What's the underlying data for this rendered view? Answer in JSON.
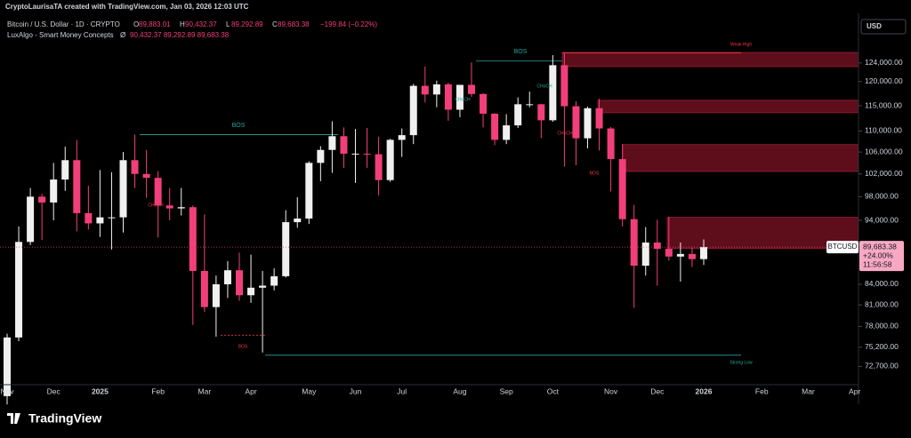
{
  "header": {
    "attribution": "CryptoLaurisaTA created with TradingView.com, Jan 03, 2026 12:03 UTC"
  },
  "chart_data": {
    "type": "candlestick",
    "title": "Bitcoin / U.S. Dollar · 1D · CRYPTO",
    "ohlc_legend": [
      {
        "key": "O",
        "label": "89,883.01"
      },
      {
        "key": "H",
        "label": "90,432.37"
      },
      {
        "key": "L",
        "label": "89,292.89"
      },
      {
        "key": "C",
        "label": "89,683.38"
      }
    ],
    "change_label": "−199.84 (−0.22%)",
    "indicator": {
      "name": "LuxAlgo - Smart Money Concepts",
      "symbol": "Ø",
      "values_label": "90,432.37  89,292.89  89,683.38"
    },
    "currency": "USD",
    "categories": [
      "Nov",
      null,
      null,
      null,
      "Dec",
      null,
      null,
      null,
      "2025",
      null,
      null,
      null,
      null,
      "Feb",
      null,
      null,
      null,
      "Mar",
      null,
      null,
      null,
      "Apr",
      null,
      null,
      null,
      null,
      "May",
      null,
      null,
      null,
      "Jun",
      null,
      null,
      null,
      "Jul",
      null,
      null,
      null,
      null,
      "Aug",
      null,
      null,
      null,
      "Sep",
      null,
      null,
      null,
      "Oct",
      null,
      null,
      null,
      null,
      "Nov",
      null,
      null,
      null,
      "Dec",
      null,
      null,
      null,
      "2026",
      null,
      null,
      null,
      null,
      "Feb",
      null,
      null,
      null,
      "Mar",
      null,
      null,
      null,
      "Apr"
    ],
    "open": [
      69000,
      76500,
      90500,
      98000,
      97000,
      101000,
      104500,
      95200,
      93500,
      94500,
      94500,
      104500,
      102000,
      101300,
      96500,
      96000,
      96200,
      86000,
      80700,
      84000,
      86100,
      82400,
      83500,
      83800,
      85200,
      93700,
      94300,
      104000,
      106400,
      109000,
      105700,
      105700,
      105600,
      100900,
      108300,
      109200,
      119100,
      117300,
      119400,
      114200,
      119300,
      117400,
      113400,
      108300,
      111100,
      115300,
      115300,
      112100,
      123500,
      114900,
      108600,
      114500,
      110500,
      104700,
      94200,
      86800,
      90400,
      89400,
      88200,
      88600,
      87800,
      null,
      null,
      null,
      null,
      null,
      null,
      null,
      null,
      null,
      null,
      null,
      null,
      null
    ],
    "high": [
      77000,
      93000,
      99500,
      98500,
      104000,
      107000,
      108300,
      99900,
      102700,
      102300,
      106000,
      109300,
      106400,
      102500,
      99500,
      99500,
      96500,
      95000,
      85300,
      87500,
      88800,
      88500,
      86000,
      86400,
      95700,
      97900,
      104300,
      107100,
      111900,
      110700,
      110400,
      110600,
      108900,
      108500,
      110500,
      119500,
      123200,
      120200,
      119800,
      119300,
      124100,
      117600,
      113500,
      113300,
      116700,
      117900,
      115400,
      125700,
      126200,
      115900,
      114800,
      116400,
      110800,
      107500,
      96600,
      92900,
      94100,
      94600,
      90400,
      89600,
      90900,
      null,
      null,
      null,
      null,
      null,
      null,
      null,
      null,
      null,
      null,
      null,
      null,
      null
    ],
    "low": [
      68000,
      76000,
      90000,
      90800,
      94000,
      99000,
      92200,
      92500,
      91300,
      89300,
      92000,
      99500,
      97800,
      91200,
      94000,
      94800,
      78200,
      80000,
      76600,
      82000,
      81600,
      81300,
      74500,
      83100,
      85000,
      92800,
      93400,
      100700,
      102200,
      103100,
      100400,
      103100,
      98200,
      100600,
      105100,
      107500,
      115700,
      114700,
      112000,
      112700,
      116800,
      110700,
      107300,
      107500,
      110600,
      114700,
      108600,
      111800,
      103300,
      103600,
      106700,
      106300,
      98900,
      93000,
      80600,
      85300,
      83800,
      87600,
      84400,
      86600,
      86900,
      null,
      null,
      null,
      null,
      null,
      null,
      null,
      null,
      null,
      null,
      null,
      null,
      null
    ],
    "close": [
      76500,
      90500,
      98000,
      97000,
      101000,
      104500,
      95200,
      93500,
      94500,
      94500,
      104500,
      102000,
      101300,
      96500,
      96000,
      96200,
      86000,
      80700,
      84000,
      86100,
      82400,
      83500,
      83800,
      85200,
      93700,
      94300,
      104000,
      106400,
      109000,
      105700,
      105700,
      105600,
      100900,
      108300,
      109200,
      119100,
      117300,
      119400,
      114200,
      119300,
      117400,
      113400,
      108300,
      111100,
      115300,
      115300,
      112100,
      123500,
      114900,
      108600,
      114500,
      110500,
      104700,
      94200,
      86800,
      90400,
      89400,
      88200,
      88600,
      87800,
      89683.38,
      null,
      null,
      null,
      null,
      null,
      null,
      null,
      null,
      null,
      null,
      null,
      null,
      null
    ],
    "up_color": "#f0f0f0",
    "down_color": "#f23f7c",
    "log_scale": true,
    "ylim": [
      70400,
      135300
    ],
    "yticks": [
      {
        "value": 124000,
        "label": "124,000.00"
      },
      {
        "value": 120000,
        "label": "120,000.00"
      },
      {
        "value": 115000,
        "label": "115,000.00"
      },
      {
        "value": 110000,
        "label": "110,000.00"
      },
      {
        "value": 106000,
        "label": "106,000.00"
      },
      {
        "value": 102000,
        "label": "102,000.00"
      },
      {
        "value": 98000,
        "label": "98,000.00"
      },
      {
        "value": 94000,
        "label": "94,000.00"
      },
      {
        "value": 84000,
        "label": "84,000.00"
      },
      {
        "value": 81000,
        "label": "81,000.00"
      },
      {
        "value": 78000,
        "label": "78,000.00"
      },
      {
        "value": 75200,
        "label": "75,200.00"
      },
      {
        "value": 72700,
        "label": "72,700.00"
      }
    ],
    "zones": [
      {
        "low": 123200,
        "high": 126300
      },
      {
        "low": 113600,
        "high": 116100
      },
      {
        "low": 102450,
        "high": 107400
      },
      {
        "low": 89450,
        "high": 94500
      }
    ],
    "zone_color": "#6e1020",
    "levels": [
      {
        "value": 124400,
        "color": "#26a69a"
      },
      {
        "value": 109300,
        "color": "#26a69a"
      },
      {
        "value": 126200,
        "color": "#f23645"
      },
      {
        "value": 74150,
        "color": "#26a69a"
      },
      {
        "value": 76800,
        "color": "#f23645"
      }
    ],
    "annotations": [
      {
        "text": "BOS",
        "color": "#26a69a"
      },
      {
        "text": "BOS",
        "color": "#26a69a"
      },
      {
        "text": "Weak High",
        "color": "#f23645"
      },
      {
        "text": "Strong Low",
        "color": "#26a69a"
      },
      {
        "text": "CHoCH",
        "color": "#26a69a"
      },
      {
        "text": "CHoCH",
        "color": "#26a69a"
      },
      {
        "text": "CHoCH",
        "color": "#f23645"
      },
      {
        "text": "CHoCH",
        "color": "#f23645"
      },
      {
        "text": "BOS",
        "color": "#f23645"
      },
      {
        "text": "BOS",
        "color": "#f23645"
      }
    ],
    "price_tag": {
      "symbol": "BTCUSD",
      "label": "89,683.38",
      "change": "+24.00%",
      "countdown": "11:56:58"
    }
  },
  "footer": {
    "brand": "TradingView"
  }
}
